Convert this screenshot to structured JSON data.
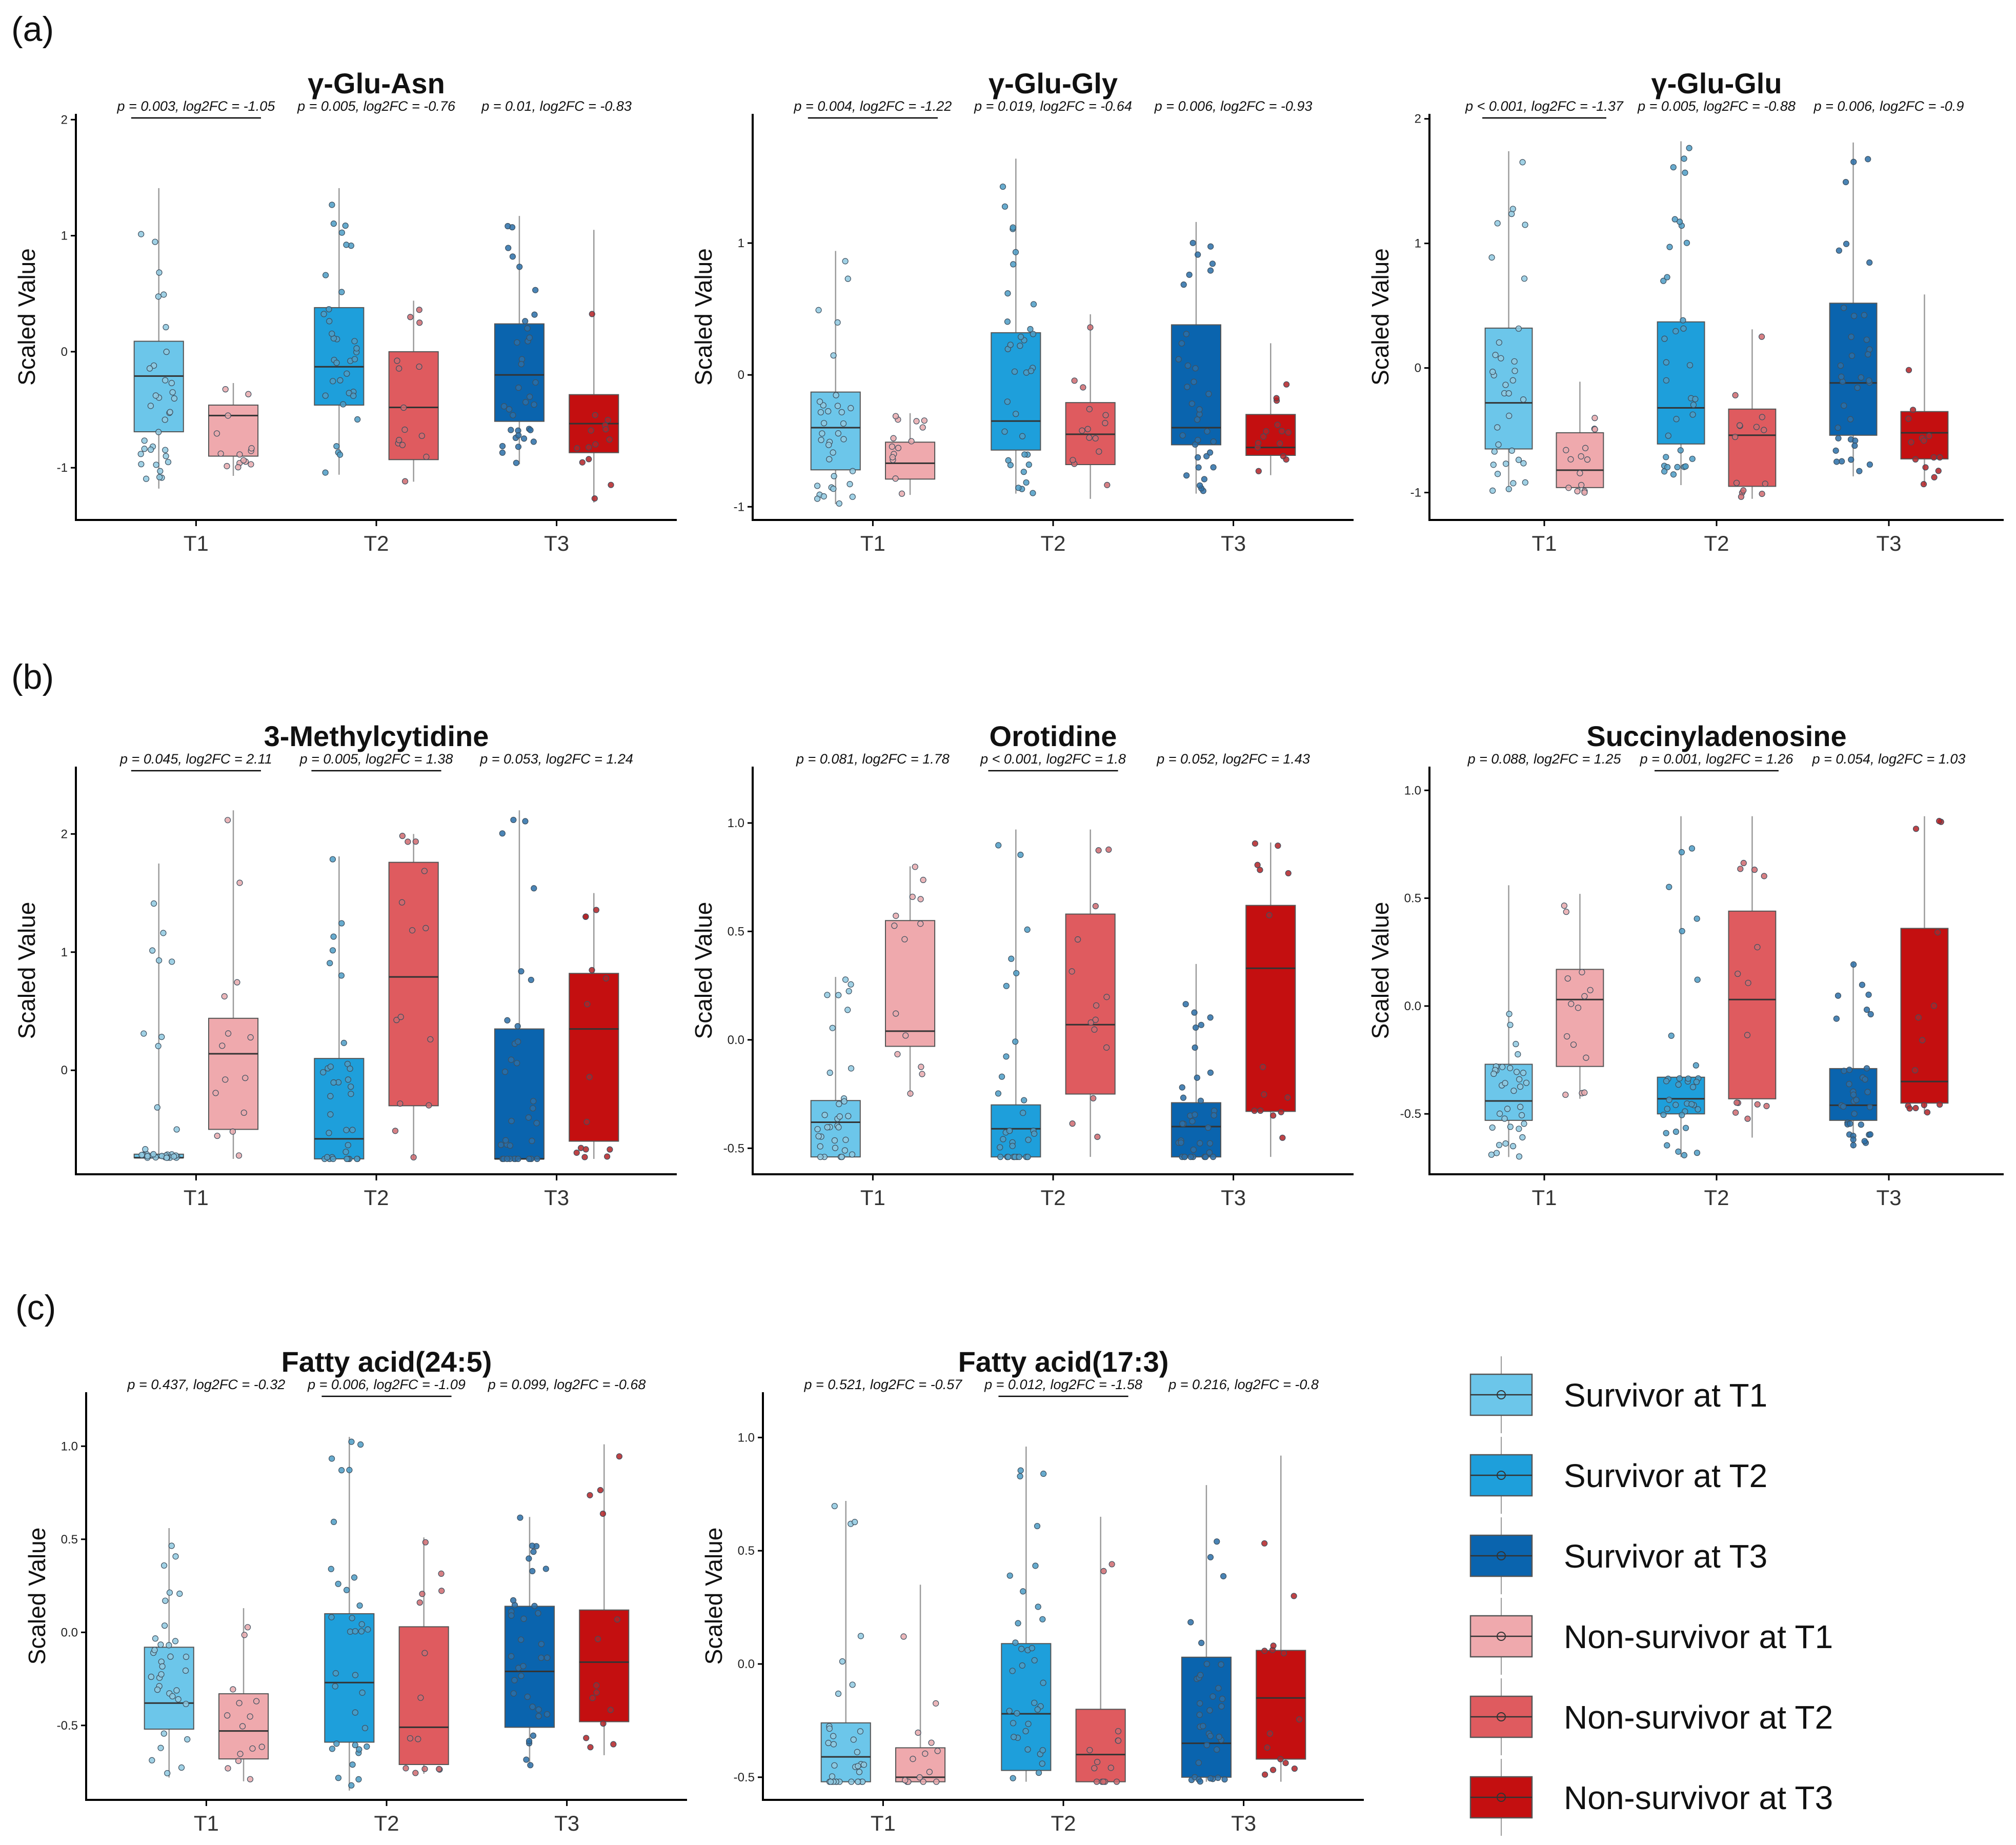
{
  "panel_labels": [
    "(a)",
    "(b)",
    "(c)"
  ],
  "colors": {
    "survivor_t1": "#6CC6EA",
    "survivor_t2": "#1E9FDB",
    "survivor_t3": "#0A64AE",
    "nonsurvivor_t1": "#EFA9AD",
    "nonsurvivor_t2": "#DF5B5F",
    "nonsurvivor_t3": "#C40F10"
  },
  "legend": {
    "items": [
      {
        "label": "Survivor at T1",
        "color": "#6CC6EA"
      },
      {
        "label": "Survivor at T2",
        "color": "#1E9FDB"
      },
      {
        "label": "Survivor at T3",
        "color": "#0A64AE"
      },
      {
        "label": "Non-survivor at T1",
        "color": "#EFA9AD"
      },
      {
        "label": "Non-survivor at T2",
        "color": "#DF5B5F"
      },
      {
        "label": "Non-survivor at T3",
        "color": "#C40F10"
      }
    ]
  },
  "chart_data": [
    {
      "type": "box",
      "panel": "(a)",
      "title": "γ-Glu-Asn",
      "ylabel": "Scaled Value",
      "categories": [
        "T1",
        "T2",
        "T3"
      ],
      "ylim": [
        -1.45,
        2.05
      ],
      "yticks": [
        -1,
        0,
        1,
        2
      ],
      "ytick_labels": [
        "-1",
        "0",
        "1",
        "2"
      ],
      "series": [
        {
          "name": "Survivor",
          "boxes": [
            {
              "q1": -0.69,
              "median": -0.21,
              "q3": 0.09,
              "whisker_low": -1.18,
              "whisker_high": 1.41
            },
            {
              "q1": -0.46,
              "median": -0.13,
              "q3": 0.38,
              "whisker_low": -1.06,
              "whisker_high": 1.41
            },
            {
              "q1": -0.6,
              "median": -0.2,
              "q3": 0.24,
              "whisker_low": -0.97,
              "whisker_high": 1.17
            }
          ]
        },
        {
          "name": "Non-survivor",
          "boxes": [
            {
              "q1": -0.9,
              "median": -0.55,
              "q3": -0.46,
              "whisker_low": -1.07,
              "whisker_high": -0.27
            },
            {
              "q1": -0.93,
              "median": -0.48,
              "q3": 0.0,
              "whisker_low": -1.12,
              "whisker_high": 0.44
            },
            {
              "q1": -0.87,
              "median": -0.62,
              "q3": -0.37,
              "whisker_low": -1.3,
              "whisker_high": 1.05
            }
          ]
        }
      ],
      "annotations": [
        {
          "text": "p = 0.003, log2FC = -1.05",
          "underline": true
        },
        {
          "text": "p = 0.005, log2FC = -0.76",
          "underline": false
        },
        {
          "text": "p = 0.01, log2FC = -0.83",
          "underline": false
        }
      ]
    },
    {
      "type": "box",
      "panel": "(a)",
      "title": "γ-Glu-Gly",
      "ylabel": "Scaled Value",
      "categories": [
        "T1",
        "T2",
        "T3"
      ],
      "ylim": [
        -1.1,
        1.98
      ],
      "yticks": [
        -1,
        0,
        1
      ],
      "ytick_labels": [
        "-1",
        "0",
        "1"
      ],
      "series": [
        {
          "name": "Survivor",
          "boxes": [
            {
              "q1": -0.72,
              "median": -0.4,
              "q3": -0.13,
              "whisker_low": -0.98,
              "whisker_high": 0.94
            },
            {
              "q1": -0.57,
              "median": -0.35,
              "q3": 0.32,
              "whisker_low": -0.9,
              "whisker_high": 1.64
            },
            {
              "q1": -0.53,
              "median": -0.4,
              "q3": 0.38,
              "whisker_low": -0.9,
              "whisker_high": 1.16
            }
          ]
        },
        {
          "name": "Non-survivor",
          "boxes": [
            {
              "q1": -0.79,
              "median": -0.67,
              "q3": -0.51,
              "whisker_low": -0.91,
              "whisker_high": -0.29
            },
            {
              "q1": -0.68,
              "median": -0.45,
              "q3": -0.21,
              "whisker_low": -0.94,
              "whisker_high": 0.46
            },
            {
              "q1": -0.61,
              "median": -0.55,
              "q3": -0.3,
              "whisker_low": -0.76,
              "whisker_high": 0.24
            }
          ]
        }
      ],
      "annotations": [
        {
          "text": "p = 0.004, log2FC = -1.22",
          "underline": true
        },
        {
          "text": "p = 0.019, log2FC = -0.64",
          "underline": false
        },
        {
          "text": "p = 0.006, log2FC = -0.93",
          "underline": false
        }
      ]
    },
    {
      "type": "box",
      "panel": "(a)",
      "title": "γ-Glu-Glu",
      "ylabel": "Scaled Value",
      "categories": [
        "T1",
        "T2",
        "T3"
      ],
      "ylim": [
        -1.22,
        2.04
      ],
      "yticks": [
        -1,
        0,
        1,
        2
      ],
      "ytick_labels": [
        "-1",
        "0",
        "1",
        "2"
      ],
      "series": [
        {
          "name": "Survivor",
          "boxes": [
            {
              "q1": -0.65,
              "median": -0.28,
              "q3": 0.32,
              "whisker_low": -0.99,
              "whisker_high": 1.74
            },
            {
              "q1": -0.61,
              "median": -0.32,
              "q3": 0.37,
              "whisker_low": -0.94,
              "whisker_high": 1.82
            },
            {
              "q1": -0.54,
              "median": -0.12,
              "q3": 0.52,
              "whisker_low": -0.87,
              "whisker_high": 1.81
            }
          ]
        },
        {
          "name": "Non-survivor",
          "boxes": [
            {
              "q1": -0.96,
              "median": -0.82,
              "q3": -0.52,
              "whisker_low": -1.0,
              "whisker_high": -0.11
            },
            {
              "q1": -0.95,
              "median": -0.54,
              "q3": -0.33,
              "whisker_low": -1.05,
              "whisker_high": 0.31
            },
            {
              "q1": -0.73,
              "median": -0.52,
              "q3": -0.35,
              "whisker_low": -0.94,
              "whisker_high": 0.59
            }
          ]
        }
      ],
      "annotations": [
        {
          "text": "p < 0.001, log2FC = -1.37",
          "underline": true
        },
        {
          "text": "p = 0.005, log2FC = -0.88",
          "underline": false
        },
        {
          "text": "p = 0.006, log2FC = -0.9",
          "underline": false
        }
      ]
    },
    {
      "type": "box",
      "panel": "(b)",
      "title": "3-Methylcytidine",
      "ylabel": "Scaled Value",
      "categories": [
        "T1",
        "T2",
        "T3"
      ],
      "ylim": [
        -0.88,
        2.57
      ],
      "yticks": [
        0,
        1,
        2
      ],
      "ytick_labels": [
        "0",
        "1",
        "2"
      ],
      "series": [
        {
          "name": "Survivor",
          "boxes": [
            {
              "q1": -0.74,
              "median": -0.74,
              "q3": -0.71,
              "whisker_low": -0.74,
              "whisker_high": 1.75
            },
            {
              "q1": -0.75,
              "median": -0.58,
              "q3": 0.1,
              "whisker_low": -0.75,
              "whisker_high": 1.81
            },
            {
              "q1": -0.75,
              "median": -0.75,
              "q3": 0.35,
              "whisker_low": -0.75,
              "whisker_high": 2.2
            }
          ]
        },
        {
          "name": "Non-survivor",
          "boxes": [
            {
              "q1": -0.5,
              "median": 0.14,
              "q3": 0.44,
              "whisker_low": -0.75,
              "whisker_high": 2.2
            },
            {
              "q1": -0.3,
              "median": 0.79,
              "q3": 1.76,
              "whisker_low": -0.75,
              "whisker_high": 2.0
            },
            {
              "q1": -0.6,
              "median": 0.35,
              "q3": 0.82,
              "whisker_low": -0.75,
              "whisker_high": 1.5
            }
          ]
        }
      ],
      "annotations": [
        {
          "text": "p = 0.045, log2FC = 2.11",
          "underline": true
        },
        {
          "text": "p = 0.005, log2FC = 1.38",
          "underline": true
        },
        {
          "text": "p = 0.053, log2FC = 1.24",
          "underline": false
        }
      ]
    },
    {
      "type": "box",
      "panel": "(b)",
      "title": "Orotidine",
      "ylabel": "Scaled Value",
      "categories": [
        "T1",
        "T2",
        "T3"
      ],
      "ylim": [
        -0.62,
        1.26
      ],
      "yticks": [
        -0.5,
        0.0,
        0.5,
        1.0
      ],
      "ytick_labels": [
        "-0.5",
        "0.0",
        "0.5",
        "1.0"
      ],
      "series": [
        {
          "name": "Survivor",
          "boxes": [
            {
              "q1": -0.54,
              "median": -0.38,
              "q3": -0.28,
              "whisker_low": -0.54,
              "whisker_high": 0.29
            },
            {
              "q1": -0.54,
              "median": -0.41,
              "q3": -0.3,
              "whisker_low": -0.54,
              "whisker_high": 0.97
            },
            {
              "q1": -0.54,
              "median": -0.4,
              "q3": -0.29,
              "whisker_low": -0.54,
              "whisker_high": 0.35
            }
          ]
        },
        {
          "name": "Non-survivor",
          "boxes": [
            {
              "q1": -0.03,
              "median": 0.04,
              "q3": 0.55,
              "whisker_low": -0.26,
              "whisker_high": 0.8
            },
            {
              "q1": -0.25,
              "median": 0.07,
              "q3": 0.58,
              "whisker_low": -0.54,
              "whisker_high": 0.97
            },
            {
              "q1": -0.33,
              "median": 0.33,
              "q3": 0.62,
              "whisker_low": -0.54,
              "whisker_high": 0.91
            }
          ]
        }
      ],
      "annotations": [
        {
          "text": "p = 0.081, log2FC = 1.78",
          "underline": false
        },
        {
          "text": "p < 0.001, log2FC = 1.8",
          "underline": true
        },
        {
          "text": "p = 0.052, log2FC = 1.43",
          "underline": false
        }
      ]
    },
    {
      "type": "box",
      "panel": "(b)",
      "title": "Succinyladenosine",
      "ylabel": "Scaled Value",
      "categories": [
        "T1",
        "T2",
        "T3"
      ],
      "ylim": [
        -0.78,
        1.11
      ],
      "yticks": [
        -0.5,
        0.0,
        0.5,
        1.0
      ],
      "ytick_labels": [
        "-0.5",
        "0.0",
        "0.5",
        "1.0"
      ],
      "series": [
        {
          "name": "Survivor",
          "boxes": [
            {
              "q1": -0.53,
              "median": -0.44,
              "q3": -0.27,
              "whisker_low": -0.7,
              "whisker_high": 0.56
            },
            {
              "q1": -0.5,
              "median": -0.43,
              "q3": -0.33,
              "whisker_low": -0.7,
              "whisker_high": 0.88
            },
            {
              "q1": -0.53,
              "median": -0.46,
              "q3": -0.29,
              "whisker_low": -0.66,
              "whisker_high": 0.2
            }
          ]
        },
        {
          "name": "Non-survivor",
          "boxes": [
            {
              "q1": -0.28,
              "median": 0.03,
              "q3": 0.17,
              "whisker_low": -0.43,
              "whisker_high": 0.52
            },
            {
              "q1": -0.43,
              "median": 0.03,
              "q3": 0.44,
              "whisker_low": -0.61,
              "whisker_high": 0.88
            },
            {
              "q1": -0.45,
              "median": -0.35,
              "q3": 0.36,
              "whisker_low": -0.5,
              "whisker_high": 0.88
            }
          ]
        }
      ],
      "annotations": [
        {
          "text": "p = 0.088, log2FC = 1.25",
          "underline": false
        },
        {
          "text": "p = 0.001, log2FC = 1.26",
          "underline": true
        },
        {
          "text": "p = 0.054, log2FC = 1.03",
          "underline": false
        }
      ]
    },
    {
      "type": "box",
      "panel": "(c)",
      "title": "Fatty acid(24:5)",
      "ylabel": "Scaled Value",
      "categories": [
        "T1",
        "T2",
        "T3"
      ],
      "ylim": [
        -0.9,
        1.29
      ],
      "yticks": [
        -0.5,
        0.0,
        0.5,
        1.0
      ],
      "ytick_labels": [
        "-0.5",
        "0.0",
        "0.5",
        "1.0"
      ],
      "series": [
        {
          "name": "Survivor",
          "boxes": [
            {
              "q1": -0.52,
              "median": -0.38,
              "q3": -0.08,
              "whisker_low": -0.78,
              "whisker_high": 0.56
            },
            {
              "q1": -0.59,
              "median": -0.27,
              "q3": 0.1,
              "whisker_low": -0.85,
              "whisker_high": 1.05
            },
            {
              "q1": -0.51,
              "median": -0.21,
              "q3": 0.14,
              "whisker_low": -0.72,
              "whisker_high": 0.62
            }
          ]
        },
        {
          "name": "Non-survivor",
          "boxes": [
            {
              "q1": -0.68,
              "median": -0.53,
              "q3": -0.33,
              "whisker_low": -0.8,
              "whisker_high": 0.13
            },
            {
              "q1": -0.71,
              "median": -0.51,
              "q3": 0.03,
              "whisker_low": -0.76,
              "whisker_high": 0.51
            },
            {
              "q1": -0.48,
              "median": -0.16,
              "q3": 0.12,
              "whisker_low": -0.66,
              "whisker_high": 1.01
            }
          ]
        }
      ],
      "annotations": [
        {
          "text": "p = 0.437, log2FC = -0.32",
          "underline": false
        },
        {
          "text": "p = 0.006, log2FC = -1.09",
          "underline": true
        },
        {
          "text": "p = 0.099, log2FC = -0.68",
          "underline": false
        }
      ]
    },
    {
      "type": "box",
      "panel": "(c)",
      "title": "Fatty acid(17:3)",
      "ylabel": "Scaled Value",
      "categories": [
        "T1",
        "T2",
        "T3"
      ],
      "ylim": [
        -0.6,
        1.2
      ],
      "yticks": [
        -0.5,
        0.0,
        0.5,
        1.0
      ],
      "ytick_labels": [
        "-0.5",
        "0.0",
        "0.5",
        "1.0"
      ],
      "series": [
        {
          "name": "Survivor",
          "boxes": [
            {
              "q1": -0.52,
              "median": -0.41,
              "q3": -0.26,
              "whisker_low": -0.52,
              "whisker_high": 0.72
            },
            {
              "q1": -0.47,
              "median": -0.22,
              "q3": 0.09,
              "whisker_low": -0.52,
              "whisker_high": 0.96
            },
            {
              "q1": -0.5,
              "median": -0.35,
              "q3": 0.03,
              "whisker_low": -0.52,
              "whisker_high": 0.79
            }
          ]
        },
        {
          "name": "Non-survivor",
          "boxes": [
            {
              "q1": -0.52,
              "median": -0.5,
              "q3": -0.37,
              "whisker_low": -0.52,
              "whisker_high": 0.35
            },
            {
              "q1": -0.52,
              "median": -0.4,
              "q3": -0.2,
              "whisker_low": -0.52,
              "whisker_high": 0.65
            },
            {
              "q1": -0.42,
              "median": -0.15,
              "q3": 0.06,
              "whisker_low": -0.52,
              "whisker_high": 0.92
            }
          ]
        }
      ],
      "annotations": [
        {
          "text": "p = 0.521, log2FC = -0.57",
          "underline": false
        },
        {
          "text": "p = 0.012, log2FC = -1.58",
          "underline": true
        },
        {
          "text": "p = 0.216, log2FC = -0.8",
          "underline": false
        }
      ]
    }
  ]
}
